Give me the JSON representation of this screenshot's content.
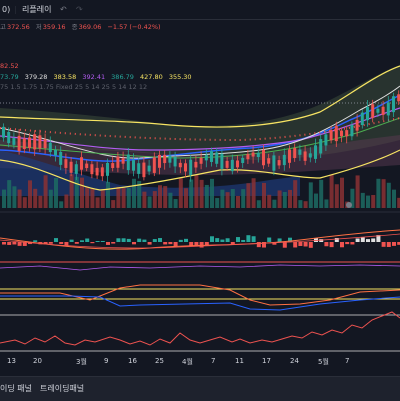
{
  "toolbar": {
    "interval": "0)",
    "replay": "리플레이",
    "undo_icon": "undo-icon",
    "redo_icon": "redo-icon"
  },
  "ohlc": {
    "high_label": "고",
    "high": "372.56",
    "low_label": "저",
    "low": "359.16",
    "close_label": "종",
    "close": "369.06",
    "change": "−1.57 (−0.42%)"
  },
  "indicators": {
    "line1": "82.52",
    "line2": [
      "73.79",
      "379.28",
      "383.58",
      "392.41",
      "386.79",
      "427.80",
      "355.30"
    ],
    "line3": "75 1.5 1.75 1.75 Fixed 25 5 14 25 5 14 12 12"
  },
  "x_axis": [
    "13",
    "20",
    "3월",
    "9",
    "16",
    "25",
    "4월",
    "7",
    "11",
    "17",
    "24",
    "5월",
    "7"
  ],
  "bottom_tabs": [
    "이딩 패널",
    "트레이딩패널"
  ],
  "colors": {
    "up": "#26a69a",
    "down": "#ef5350",
    "background": "#131722",
    "band": "#f7e463",
    "ma_blue": "#2962ff",
    "ma_purple": "#b25cf0"
  }
}
